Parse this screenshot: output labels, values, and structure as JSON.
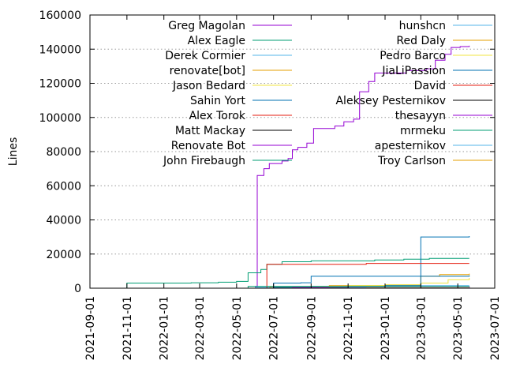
{
  "chart_data": {
    "type": "line",
    "title": "",
    "xlabel": "",
    "ylabel": "Lines",
    "xlim": [
      "2021-09-01",
      "2023-07-01"
    ],
    "ylim": [
      0,
      160000
    ],
    "y_ticks": [
      "0",
      "20000",
      "40000",
      "60000",
      "80000",
      "100000",
      "120000",
      "140000",
      "160000"
    ],
    "x_ticks": [
      "2021-09-01",
      "2021-11-01",
      "2022-01-01",
      "2022-03-01",
      "2022-05-01",
      "2022-07-01",
      "2022-09-01",
      "2022-11-01",
      "2023-01-01",
      "2023-03-01",
      "2023-05-01",
      "2023-07-01"
    ],
    "grid": "horizontal dotted",
    "legend_placement": "top",
    "series": [
      {
        "name": "Greg Magolan",
        "color": "#9400d3",
        "points": [
          [
            "2022-05-01",
            0
          ],
          [
            "2022-06-01",
            1000
          ],
          [
            "2022-06-04",
            66000
          ],
          [
            "2022-06-15",
            70000
          ],
          [
            "2022-06-24",
            73000
          ],
          [
            "2022-07-15",
            74500
          ],
          [
            "2022-07-25",
            76000
          ],
          [
            "2022-08-01",
            81000
          ],
          [
            "2022-08-10",
            82500
          ],
          [
            "2022-08-25",
            85000
          ],
          [
            "2022-09-05",
            93500
          ],
          [
            "2022-10-10",
            95000
          ],
          [
            "2022-10-25",
            97500
          ],
          [
            "2022-11-10",
            99000
          ],
          [
            "2022-11-20",
            115000
          ],
          [
            "2022-12-05",
            121000
          ],
          [
            "2022-12-15",
            126000
          ],
          [
            "2023-02-05",
            127500
          ],
          [
            "2023-03-10",
            128500
          ],
          [
            "2023-03-25",
            133500
          ],
          [
            "2023-04-10",
            137000
          ],
          [
            "2023-04-20",
            141000
          ],
          [
            "2023-05-05",
            141500
          ],
          [
            "2023-05-20",
            142000
          ]
        ]
      },
      {
        "name": "Alex Eagle",
        "color": "#009e73",
        "points": [
          [
            "2021-10-25",
            0
          ],
          [
            "2021-11-01",
            3000
          ],
          [
            "2022-02-15",
            3200
          ],
          [
            "2022-04-01",
            3500
          ],
          [
            "2022-05-01",
            4000
          ],
          [
            "2022-05-20",
            9000
          ],
          [
            "2022-06-10",
            11000
          ],
          [
            "2022-06-20",
            14000
          ],
          [
            "2022-07-15",
            15500
          ],
          [
            "2022-09-01",
            16000
          ],
          [
            "2022-12-15",
            16500
          ],
          [
            "2023-02-01",
            17000
          ],
          [
            "2023-03-15",
            17500
          ],
          [
            "2023-05-20",
            17500
          ]
        ]
      },
      {
        "name": "Derek Cormier",
        "color": "#56b4e9",
        "points": [
          [
            "2022-05-15",
            0
          ],
          [
            "2022-06-01",
            500
          ],
          [
            "2022-09-01",
            1000
          ],
          [
            "2022-12-01",
            1200
          ],
          [
            "2023-03-01",
            1500
          ],
          [
            "2023-05-20",
            1500
          ]
        ]
      },
      {
        "name": "renovate[bot]",
        "color": "#e69f00",
        "points": [
          [
            "2022-06-10",
            0
          ],
          [
            "2022-06-25",
            800
          ],
          [
            "2022-10-01",
            1500
          ],
          [
            "2023-01-01",
            2000
          ],
          [
            "2023-03-01",
            7000
          ],
          [
            "2023-04-01",
            8000
          ],
          [
            "2023-05-20",
            8500
          ]
        ]
      },
      {
        "name": "Jason Bedard",
        "color": "#f0e442",
        "points": [
          [
            "2022-09-01",
            0
          ],
          [
            "2022-09-15",
            1000
          ],
          [
            "2022-11-01",
            1500
          ],
          [
            "2023-01-01",
            2000
          ],
          [
            "2023-03-01",
            3000
          ],
          [
            "2023-04-15",
            5000
          ],
          [
            "2023-05-20",
            6000
          ]
        ]
      },
      {
        "name": "Sahin Yort",
        "color": "#0072b2",
        "points": [
          [
            "2022-05-01",
            0
          ],
          [
            "2022-07-01",
            500
          ],
          [
            "2022-11-01",
            1000
          ],
          [
            "2023-01-01",
            1500
          ],
          [
            "2023-03-01",
            30000
          ],
          [
            "2023-05-20",
            30500
          ]
        ]
      },
      {
        "name": "Alex Torok",
        "color": "#e51e10",
        "points": [
          [
            "2022-06-10",
            0
          ],
          [
            "2022-06-20",
            14000
          ],
          [
            "2022-12-01",
            14500
          ],
          [
            "2023-05-20",
            14500
          ]
        ]
      },
      {
        "name": "Matt Mackay",
        "color": "#000000",
        "points": [
          [
            "2022-06-01",
            0
          ],
          [
            "2022-09-01",
            200
          ],
          [
            "2023-05-20",
            400
          ]
        ]
      },
      {
        "name": "Renovate Bot",
        "color": "#9400d3",
        "points": [
          [
            "2022-06-01",
            0
          ],
          [
            "2022-09-01",
            300
          ],
          [
            "2023-05-20",
            800
          ]
        ]
      },
      {
        "name": "John Firebaugh",
        "color": "#009e73",
        "points": [
          [
            "2022-05-01",
            0
          ],
          [
            "2022-05-20",
            1000
          ],
          [
            "2023-05-20",
            1200
          ]
        ]
      },
      {
        "name": "hunshcn",
        "color": "#56b4e9",
        "points": [
          [
            "2022-07-01",
            0
          ],
          [
            "2022-08-01",
            200
          ],
          [
            "2023-05-20",
            300
          ]
        ]
      },
      {
        "name": "Red Daly",
        "color": "#e69f00",
        "points": [
          [
            "2022-08-01",
            0
          ],
          [
            "2022-09-01",
            300
          ],
          [
            "2023-05-20",
            500
          ]
        ]
      },
      {
        "name": "Pedro Barco",
        "color": "#f0e442",
        "points": [
          [
            "2022-08-01",
            0
          ],
          [
            "2022-10-01",
            200
          ],
          [
            "2023-05-20",
            300
          ]
        ]
      },
      {
        "name": "JiaLiPassion",
        "color": "#0072b2",
        "points": [
          [
            "2022-06-01",
            0
          ],
          [
            "2022-07-01",
            3000
          ],
          [
            "2022-08-15",
            3200
          ],
          [
            "2022-09-01",
            7000
          ],
          [
            "2023-05-20",
            7500
          ]
        ]
      },
      {
        "name": "David",
        "color": "#e51e10",
        "points": [
          [
            "2022-10-01",
            0
          ],
          [
            "2022-11-01",
            100
          ],
          [
            "2023-05-20",
            200
          ]
        ]
      },
      {
        "name": "Aleksey Pesternikov",
        "color": "#000000",
        "points": [
          [
            "2022-11-01",
            0
          ],
          [
            "2022-12-01",
            150
          ],
          [
            "2023-05-20",
            200
          ]
        ]
      },
      {
        "name": "thesayyn",
        "color": "#9400d3",
        "points": [
          [
            "2022-07-01",
            0
          ],
          [
            "2022-08-01",
            300
          ],
          [
            "2023-05-20",
            500
          ]
        ]
      },
      {
        "name": "mrmeku",
        "color": "#009e73",
        "points": [
          [
            "2022-09-01",
            0
          ],
          [
            "2022-10-01",
            100
          ],
          [
            "2023-05-20",
            150
          ]
        ]
      },
      {
        "name": "apesternikov",
        "color": "#56b4e9",
        "points": [
          [
            "2022-10-01",
            0
          ],
          [
            "2022-11-01",
            100
          ],
          [
            "2023-05-20",
            120
          ]
        ]
      },
      {
        "name": "Troy Carlson",
        "color": "#e69f00",
        "points": [
          [
            "2022-11-01",
            0
          ],
          [
            "2022-12-01",
            80
          ],
          [
            "2023-05-20",
            100
          ]
        ]
      }
    ]
  }
}
